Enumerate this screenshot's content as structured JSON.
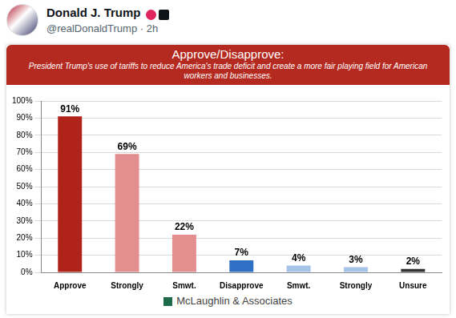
{
  "post": {
    "author": "Donald J. Trump",
    "handle": "@realDonaldTrump · 2h"
  },
  "chart_data": {
    "type": "bar",
    "title": "Approve/Disapprove:",
    "subtitle": "President Trump's use of tariffs to reduce America's trade deficit and create a more fair playing field for American workers and businesses.",
    "source": "McLaughlin & Associates",
    "categories": [
      "Approve",
      "Strongly",
      "Smwt.",
      "Disapprove",
      "Smwt.",
      "Strongly",
      "Unsure"
    ],
    "values": [
      91,
      69,
      22,
      7,
      4,
      3,
      2
    ],
    "value_labels": [
      "91%",
      "69%",
      "22%",
      "7%",
      "4%",
      "3%",
      "2%"
    ],
    "colors": [
      "#b0231b",
      "#e38f8f",
      "#e38f8f",
      "#2f6fc4",
      "#a7c3e8",
      "#a7c3e8",
      "#333333"
    ],
    "ylim": [
      0,
      100
    ],
    "yticks": [
      {
        "value": 0,
        "label": "0%"
      },
      {
        "value": 10,
        "label": "10%"
      },
      {
        "value": 20,
        "label": "20%"
      },
      {
        "value": 30,
        "label": "30%"
      },
      {
        "value": 40,
        "label": "40%"
      },
      {
        "value": 50,
        "label": "50%"
      },
      {
        "value": 60,
        "label": "60%"
      },
      {
        "value": 70,
        "label": "70%"
      },
      {
        "value": 80,
        "label": "80%"
      },
      {
        "value": 90,
        "label": "90%"
      },
      {
        "value": 100,
        "label": "100%"
      }
    ],
    "grid": true,
    "data_labels": true
  }
}
